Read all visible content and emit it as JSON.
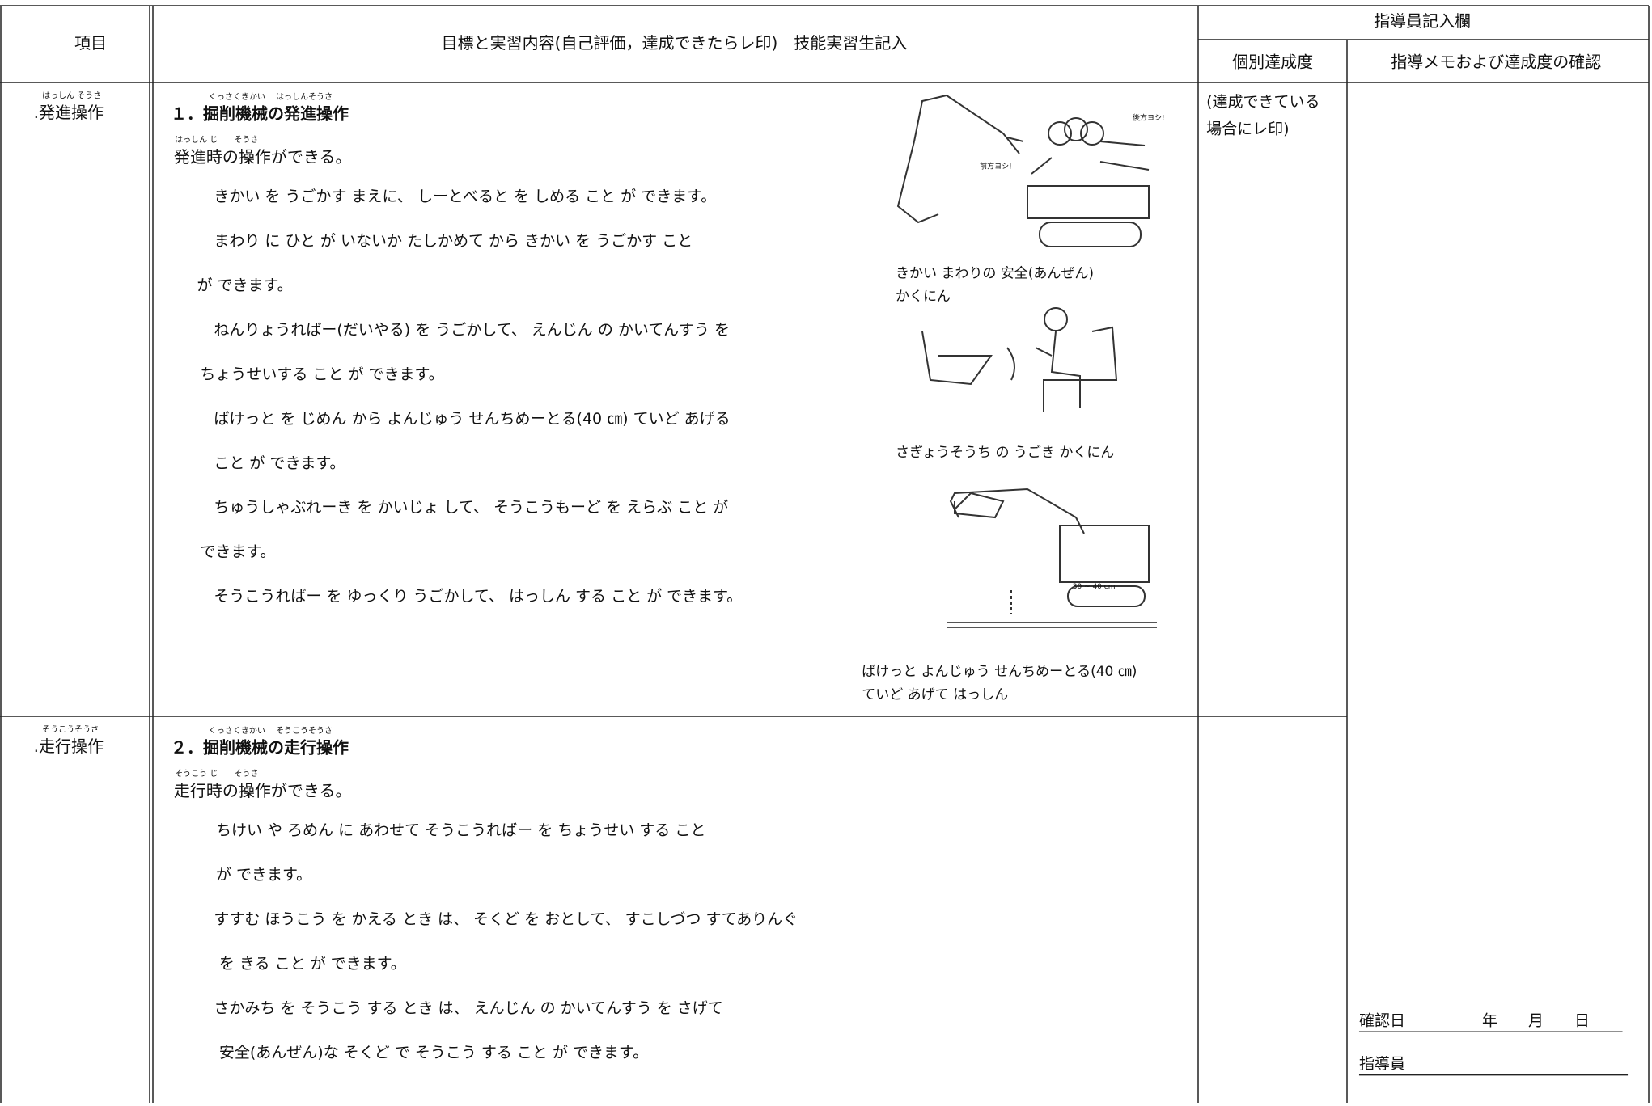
{
  "header": {
    "item": "項目",
    "content": "目標と実習内容(自己評価，達成できたらレ印)　技能実習生記入",
    "instructor_group": "指導員記入欄",
    "achievement": "個別達成度",
    "memo": "指導メモおよび達成度の確認"
  },
  "rows": [
    {
      "item_ruby": "はっしん そうさ",
      "item": ".発進操作",
      "heading_ruby": "くっさくきかい　 はっしんそうさ",
      "heading": "１．掘削機械の発進操作",
      "goal_ruby": "はっしん じ　　そうさ",
      "goal": "発進時の操作ができる。",
      "lines": [
        "きかい を うごかす まえに、 しーとべると を しめる こと が できます。",
        "まわり に ひと が いないか たしかめて から きかい を うごかす こと",
        "が できます。",
        "ねんりょうればー(だいやる) を うごかして、 えんじん の かいてんすう を",
        "ちょうせいする こと が できます。",
        "ばけっと を じめん から よんじゅう せんちめーとる(40 ㎝) ていど あげる",
        "こと が できます。",
        "ちゅうしゃぶれーき を かいじょ して、 そうこうもーど を えらぶ こと が",
        "できます。",
        "そうこうればー を ゆっくり うごかして、 はっしん する こと が できます。"
      ],
      "achievement_note": [
        "(達成できている",
        "場合にレ印)"
      ],
      "figures": [
        {
          "labels": [
            "後方ヨシ!",
            "前方ヨシ!"
          ],
          "caption": [
            "きかい まわりの 安全(あんぜん)",
            "かくにん"
          ]
        },
        {
          "labels": [],
          "caption": [
            "さぎょうそうち の うごき かくにん"
          ]
        },
        {
          "labels": [
            "30 ~ 40 cm"
          ],
          "caption": [
            "ばけっと よんじゅう せんちめーとる(40 ㎝)",
            "ていど あげて はっしん"
          ]
        }
      ]
    },
    {
      "item_ruby": "そうこうそうさ",
      "item": ".走行操作",
      "heading_ruby": "くっさくきかい　 そうこうそうさ",
      "heading": "２．掘削機械の走行操作",
      "goal_ruby": "そうこう じ　　そうさ",
      "goal": "走行時の操作ができる。",
      "lines": [
        "ちけい や ろめん に あわせて そうこうればー を ちょうせい する こと",
        "が できます。",
        "すすむ ほうこう を かえる とき は、 そくど を おとして、 すこしづつ すてありんぐ",
        "を きる こと が できます。",
        "さかみち を そうこう する とき は、 えんじん の かいてんすう を さげて",
        "安全(あんぜん)な そくど で そうこう する こと が できます。"
      ]
    }
  ],
  "confirmation": {
    "date": "確認日　　　　　年　　月　　日",
    "instructor": "指導員"
  }
}
